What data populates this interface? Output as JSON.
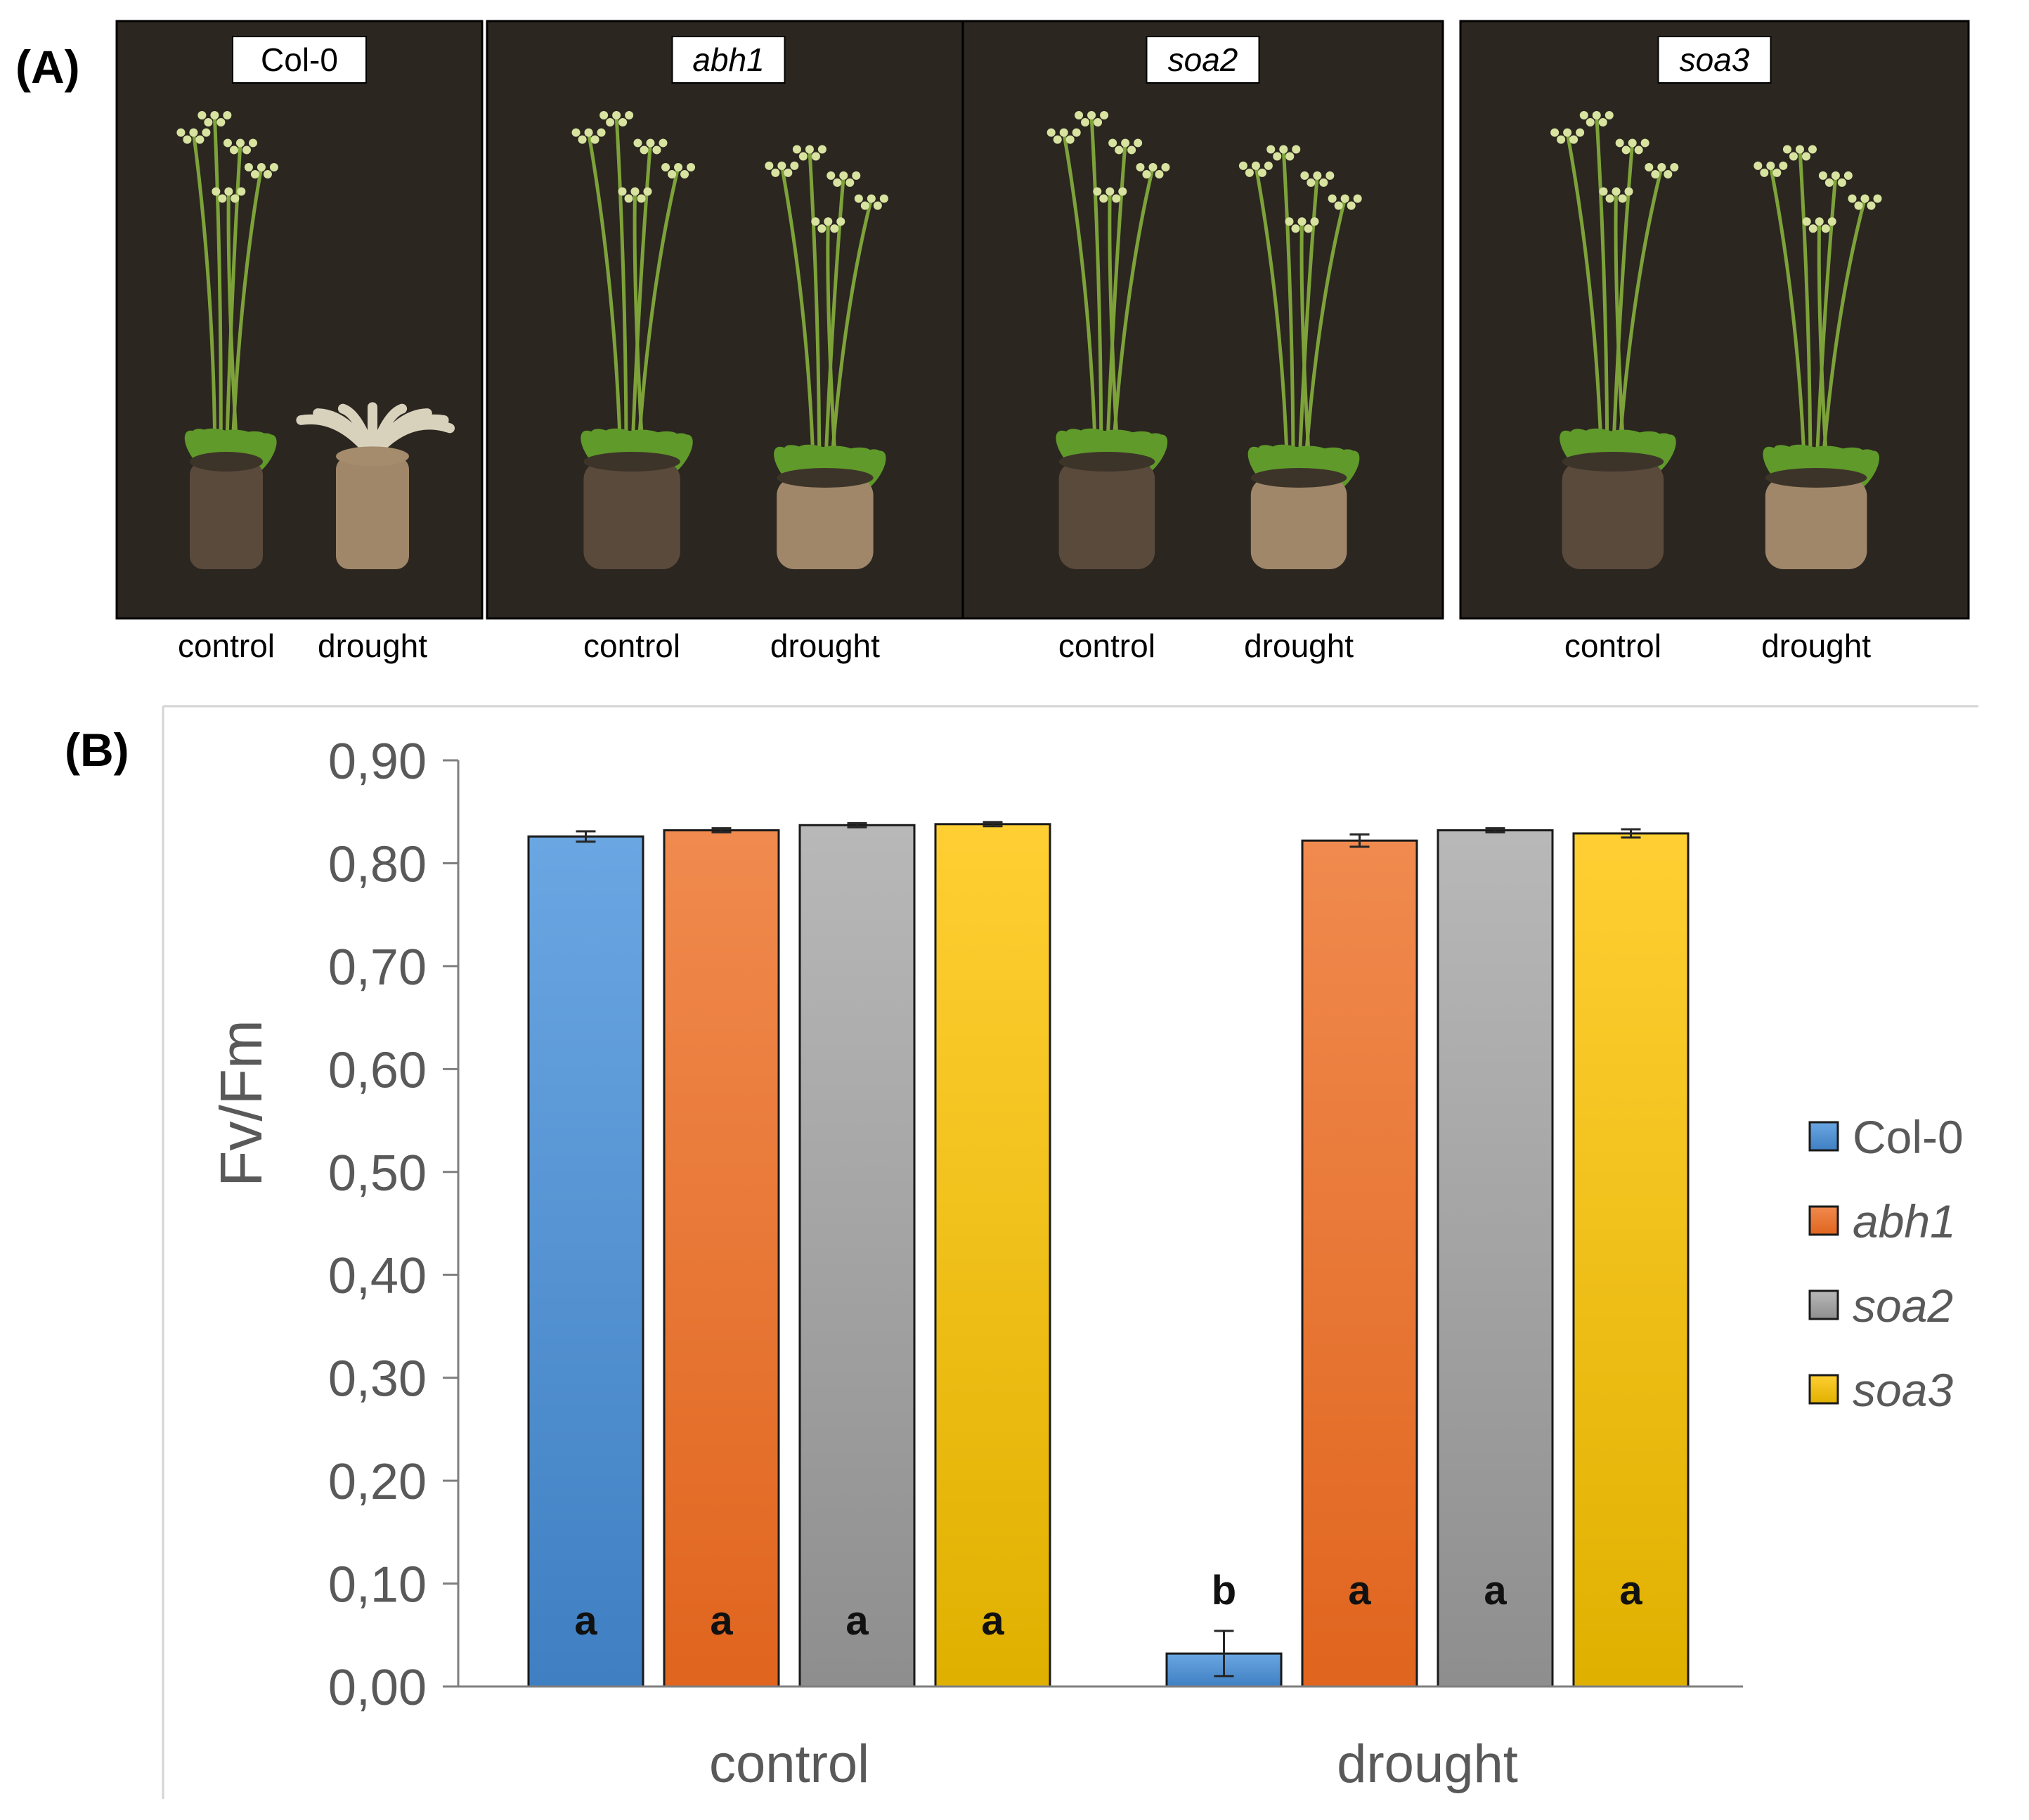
{
  "panel_a": {
    "label": "(A)",
    "photos": [
      {
        "genotype": "Col-0",
        "italic": false,
        "conditions": [
          "control",
          "drought"
        ],
        "drought_state": "wilted"
      },
      {
        "genotype": "abh1",
        "italic": true,
        "conditions": [
          "control",
          "drought"
        ],
        "drought_state": "healthy"
      },
      {
        "genotype": "soa2",
        "italic": true,
        "conditions": [
          "control",
          "drought"
        ],
        "drought_state": "healthy"
      },
      {
        "genotype": "soa3",
        "italic": true,
        "conditions": [
          "control",
          "drought"
        ],
        "drought_state": "healthy"
      }
    ]
  },
  "panel_b": {
    "label": "(B)"
  },
  "colors": {
    "Col-0": [
      "#6aa6e2",
      "#3f7fc2"
    ],
    "abh1": [
      "#f08a4e",
      "#e0651e"
    ],
    "soa2": [
      "#b8b8b8",
      "#8e8e8e"
    ],
    "soa3": [
      "#ffcf33",
      "#e0b000"
    ],
    "photo_background": "#2b2620"
  },
  "chart_data": {
    "type": "bar",
    "categories": [
      "control",
      "drought"
    ],
    "series": [
      {
        "name": "Col-0",
        "italic": false,
        "values": [
          0.826,
          0.032
        ],
        "errors": [
          0.005,
          0.022
        ],
        "letters": [
          "a",
          "b"
        ]
      },
      {
        "name": "abh1",
        "italic": true,
        "values": [
          0.832,
          0.822
        ],
        "errors": [
          0.002,
          0.006
        ],
        "letters": [
          "a",
          "a"
        ]
      },
      {
        "name": "soa2",
        "italic": true,
        "values": [
          0.837,
          0.832
        ],
        "errors": [
          0.002,
          0.002
        ],
        "letters": [
          "a",
          "a"
        ]
      },
      {
        "name": "soa3",
        "italic": true,
        "values": [
          0.838,
          0.829
        ],
        "errors": [
          0.002,
          0.004
        ],
        "letters": [
          "a",
          "a"
        ]
      }
    ],
    "ylabel": "Fv/Fm",
    "xlabel": "",
    "ylim": [
      0,
      0.9
    ],
    "yticks": [
      "0,00",
      "0,10",
      "0,20",
      "0,30",
      "0,40",
      "0,50",
      "0,60",
      "0,70",
      "0,80",
      "0,90"
    ],
    "legend_position": "right",
    "grid": false
  }
}
